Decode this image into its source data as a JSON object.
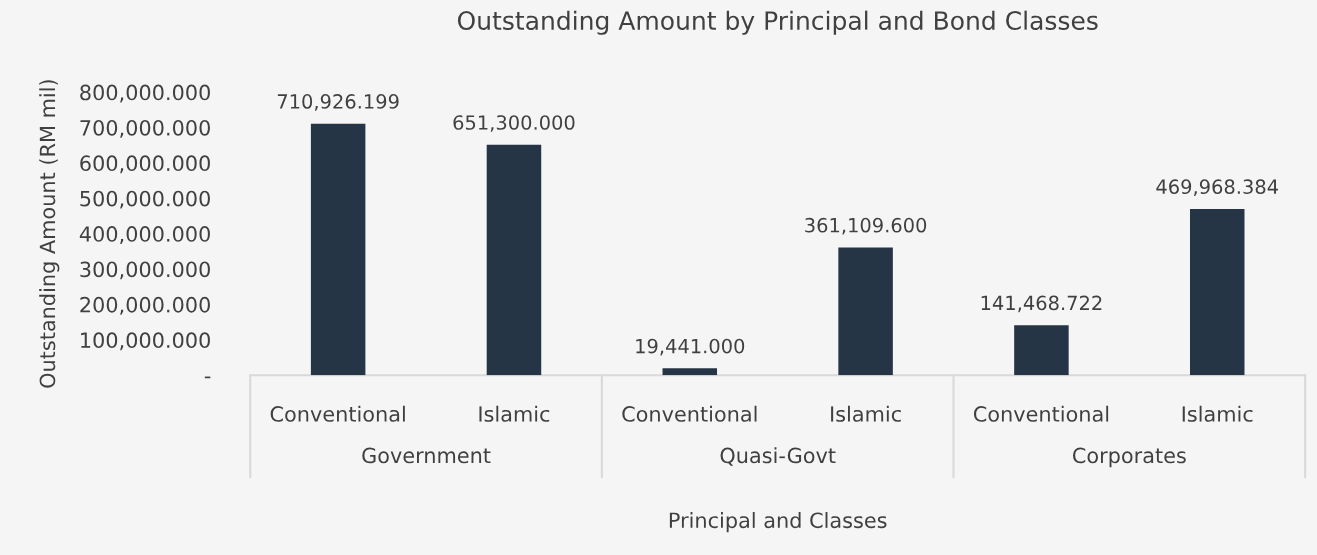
{
  "chart_data": {
    "type": "bar",
    "title": "Outstanding Amount by Principal and Bond Classes",
    "xlabel": "Principal and Classes",
    "ylabel": "Outstanding Amount (RM mil)",
    "categories": [
      "Conventional",
      "Islamic",
      "Conventional",
      "Islamic",
      "Conventional",
      "Islamic"
    ],
    "annotations": [
      "Government",
      "Quasi-Govt",
      "Corporates"
    ],
    "values": [
      710926.199,
      651300.0,
      19441.0,
      361109.6,
      141468.722,
      469968.384
    ],
    "color": "#263545",
    "ylim": [
      0,
      800000
    ],
    "yticks": [
      {
        "value": 0,
        "label": "-"
      },
      {
        "value": 100000,
        "label": "100,000.000"
      },
      {
        "value": 200000,
        "label": "200,000.000"
      },
      {
        "value": 300000,
        "label": "300,000.000"
      },
      {
        "value": 400000,
        "label": "400,000.000"
      },
      {
        "value": 500000,
        "label": "500,000.000"
      },
      {
        "value": 600000,
        "label": "600,000.000"
      },
      {
        "value": 700000,
        "label": "700,000.000"
      },
      {
        "value": 800000,
        "label": "800,000.000"
      }
    ],
    "value_labels": [
      "710,926.199",
      "651,300.000",
      "19,441.000",
      "361,109.600",
      "141,468.722",
      "469,968.384"
    ]
  }
}
